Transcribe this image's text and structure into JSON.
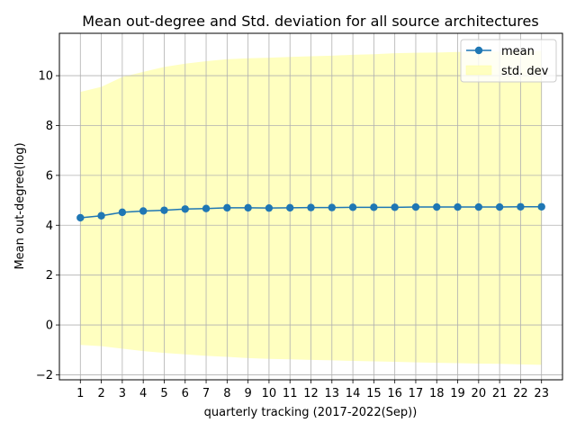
{
  "chart_data": {
    "type": "line",
    "title": "Mean out-degree and Std. deviation for all source architectures",
    "xlabel": "quarterly tracking (2017-2022(Sep))",
    "ylabel": "Mean out-degree(log)",
    "x": [
      1,
      2,
      3,
      4,
      5,
      6,
      7,
      8,
      9,
      10,
      11,
      12,
      13,
      14,
      15,
      16,
      17,
      18,
      19,
      20,
      21,
      22,
      23
    ],
    "xticks": [
      "1",
      "2",
      "3",
      "4",
      "5",
      "6",
      "7",
      "8",
      "9",
      "10",
      "11",
      "12",
      "13",
      "14",
      "15",
      "16",
      "17",
      "18",
      "19",
      "20",
      "21",
      "22",
      "23"
    ],
    "xlim": [
      0,
      24
    ],
    "ylim": [
      -2.2,
      11.7
    ],
    "yticks": [
      -2,
      0,
      2,
      4,
      6,
      8,
      10
    ],
    "ytick_labels": [
      "−2",
      "0",
      "2",
      "4",
      "6",
      "8",
      "10"
    ],
    "grid": true,
    "legend_position": "top-right",
    "series": [
      {
        "name": "mean",
        "kind": "line-marker",
        "color": "#1f77b4",
        "values": [
          4.3,
          4.38,
          4.52,
          4.57,
          4.6,
          4.65,
          4.67,
          4.7,
          4.7,
          4.69,
          4.7,
          4.71,
          4.71,
          4.72,
          4.72,
          4.72,
          4.73,
          4.73,
          4.73,
          4.73,
          4.73,
          4.74,
          4.74
        ]
      },
      {
        "name": "std. dev",
        "kind": "band",
        "color": "#ffffc0",
        "upper": [
          9.35,
          9.55,
          9.95,
          10.15,
          10.35,
          10.48,
          10.58,
          10.66,
          10.7,
          10.72,
          10.75,
          10.78,
          10.8,
          10.84,
          10.86,
          10.9,
          10.92,
          10.93,
          10.95,
          10.96,
          10.97,
          10.98,
          10.99
        ],
        "lower": [
          -0.8,
          -0.85,
          -0.95,
          -1.05,
          -1.12,
          -1.18,
          -1.24,
          -1.28,
          -1.33,
          -1.36,
          -1.38,
          -1.4,
          -1.42,
          -1.44,
          -1.46,
          -1.48,
          -1.5,
          -1.52,
          -1.53,
          -1.55,
          -1.56,
          -1.58,
          -1.6
        ]
      }
    ]
  }
}
